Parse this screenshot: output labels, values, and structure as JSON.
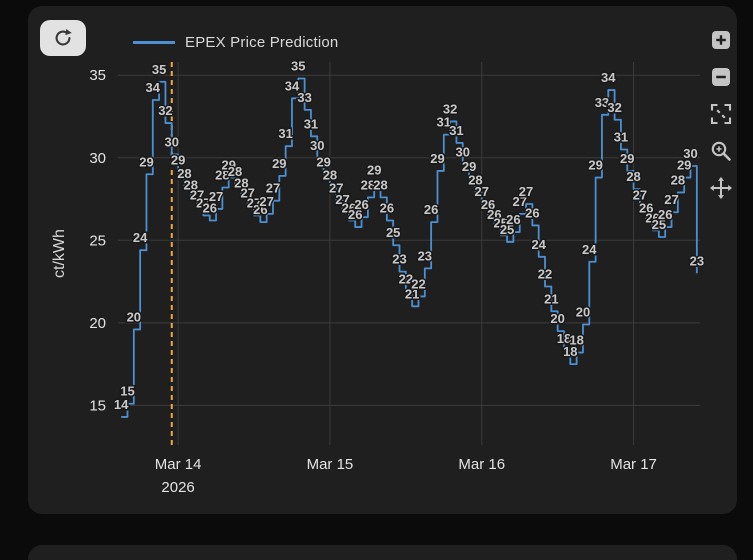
{
  "toolbar": {
    "refresh_icon": "refresh"
  },
  "legend": {
    "label": "EPEX Price Prediction"
  },
  "modebar": {
    "buttons": [
      {
        "name": "zoom-in",
        "glyph": "+"
      },
      {
        "name": "zoom-out",
        "glyph": "-"
      },
      {
        "name": "autoscale",
        "glyph": "expand-corners"
      },
      {
        "name": "box-zoom",
        "glyph": "magnifier"
      },
      {
        "name": "pan",
        "glyph": "move-arrows"
      }
    ]
  },
  "chart_data": {
    "type": "line",
    "step": true,
    "title": "",
    "xlabel": "",
    "ylabel": "ct/kWh",
    "legend_position": "top",
    "grid": true,
    "grid_color": "#3c3c3c",
    "data_labels": true,
    "label_color": "#c9c9c9",
    "now_marker": {
      "x": 23,
      "color": "#f2a73d",
      "style": "dashed"
    },
    "x_axis": {
      "unit": "hours since 2026-03-13 00:00",
      "range": [
        14.5,
        106.5
      ],
      "ticks": [
        {
          "pos": 24,
          "label": "Mar 14",
          "sublabel": "2026"
        },
        {
          "pos": 48,
          "label": "Mar 15",
          "sublabel": ""
        },
        {
          "pos": 72,
          "label": "Mar 16",
          "sublabel": ""
        },
        {
          "pos": 96,
          "label": "Mar 17",
          "sublabel": ""
        }
      ]
    },
    "y_axis": {
      "label": "ct/kWh",
      "ticks": [
        15,
        20,
        25,
        30,
        35
      ],
      "range": [
        12.6,
        35.8
      ]
    },
    "series": [
      {
        "name": "EPEX Price Prediction",
        "color": "#4a90d2",
        "x": [
          15,
          16,
          17,
          18,
          19,
          20,
          21,
          22,
          23,
          24,
          25,
          26,
          27,
          28,
          29,
          30,
          31,
          32,
          33,
          34,
          35,
          36,
          37,
          38,
          39,
          40,
          41,
          42,
          43,
          44,
          45,
          46,
          47,
          48,
          49,
          50,
          51,
          52,
          53,
          54,
          55,
          56,
          57,
          58,
          59,
          60,
          61,
          62,
          63,
          64,
          65,
          66,
          67,
          68,
          69,
          70,
          71,
          72,
          73,
          74,
          75,
          76,
          77,
          78,
          79,
          80,
          81,
          82,
          83,
          84,
          85,
          86,
          87,
          88,
          89,
          90,
          91,
          92,
          93,
          94,
          95,
          96,
          97,
          98,
          99,
          100,
          101,
          102,
          103,
          104,
          105,
          106
        ],
        "y": [
          14.3,
          15.1,
          19.6,
          24.4,
          29.0,
          33.5,
          34.6,
          32.1,
          30.2,
          29.1,
          28.3,
          27.6,
          27.0,
          26.5,
          26.2,
          26.9,
          28.2,
          28.8,
          28.4,
          27.7,
          27.1,
          26.5,
          26.1,
          26.6,
          27.4,
          28.9,
          30.7,
          33.6,
          34.8,
          32.9,
          31.3,
          30.0,
          29.0,
          28.2,
          27.4,
          26.7,
          26.2,
          25.8,
          26.4,
          27.6,
          28.5,
          27.6,
          26.2,
          24.7,
          23.1,
          21.9,
          21.0,
          21.6,
          23.3,
          26.1,
          29.2,
          31.4,
          32.2,
          30.9,
          29.6,
          28.7,
          27.9,
          27.2,
          26.4,
          25.8,
          25.3,
          24.9,
          25.5,
          26.6,
          27.2,
          25.9,
          24.0,
          22.2,
          20.7,
          19.5,
          18.3,
          17.5,
          18.2,
          19.9,
          23.7,
          28.8,
          32.6,
          34.1,
          32.3,
          30.5,
          29.2,
          28.1,
          27.0,
          26.2,
          25.6,
          25.2,
          25.8,
          26.7,
          27.9,
          28.8,
          29.5,
          23.0
        ]
      }
    ]
  }
}
